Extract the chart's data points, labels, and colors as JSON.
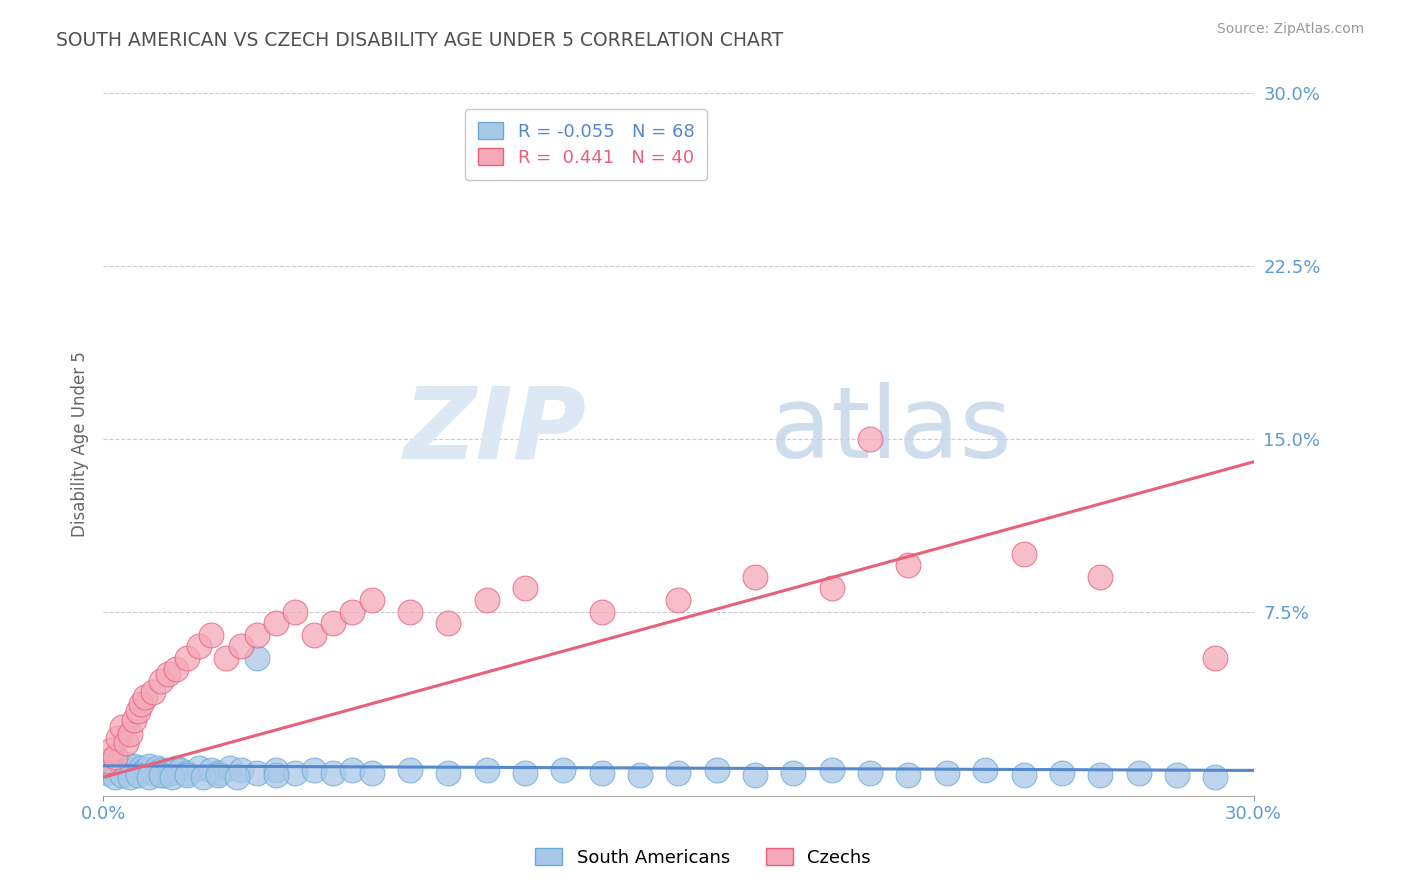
{
  "title": "SOUTH AMERICAN VS CZECH DISABILITY AGE UNDER 5 CORRELATION CHART",
  "source": "Source: ZipAtlas.com",
  "legend_sa": "South Americans",
  "legend_cz": "Czechs",
  "r_sa": -0.055,
  "n_sa": 68,
  "r_cz": 0.441,
  "n_cz": 40,
  "xlim": [
    0.0,
    0.3
  ],
  "ylim": [
    -0.005,
    0.3
  ],
  "ytick_vals": [
    0.0,
    0.075,
    0.15,
    0.225,
    0.3
  ],
  "ytick_labels": [
    "",
    "7.5%",
    "15.0%",
    "22.5%",
    "30.0%"
  ],
  "color_sa": "#a8c8e8",
  "color_cz": "#f4a8b8",
  "edge_color_sa": "#6aaad4",
  "edge_color_cz": "#e8607a",
  "line_color_sa": "#5588cc",
  "line_color_cz": "#e8607a",
  "background_color": "#ffffff",
  "grid_color": "#cccccc",
  "title_color": "#505050",
  "axis_label_color": "#5b9bd5",
  "ylabel": "Disability Age Under 5",
  "sa_line_y0": 0.008,
  "sa_line_y1": 0.006,
  "cz_line_y0": 0.003,
  "cz_line_y1": 0.14,
  "sa_x": [
    0.001,
    0.002,
    0.003,
    0.004,
    0.005,
    0.006,
    0.007,
    0.008,
    0.009,
    0.01,
    0.011,
    0.012,
    0.013,
    0.014,
    0.015,
    0.016,
    0.017,
    0.018,
    0.019,
    0.02,
    0.022,
    0.025,
    0.028,
    0.03,
    0.033,
    0.036,
    0.04,
    0.045,
    0.05,
    0.055,
    0.06,
    0.065,
    0.07,
    0.08,
    0.09,
    0.1,
    0.11,
    0.12,
    0.13,
    0.14,
    0.15,
    0.16,
    0.17,
    0.18,
    0.19,
    0.2,
    0.21,
    0.22,
    0.23,
    0.24,
    0.25,
    0.26,
    0.27,
    0.28,
    0.29,
    0.003,
    0.005,
    0.007,
    0.009,
    0.012,
    0.015,
    0.018,
    0.022,
    0.026,
    0.03,
    0.035,
    0.04,
    0.045
  ],
  "sa_y": [
    0.005,
    0.008,
    0.006,
    0.01,
    0.007,
    0.009,
    0.006,
    0.008,
    0.005,
    0.007,
    0.006,
    0.008,
    0.005,
    0.007,
    0.006,
    0.004,
    0.006,
    0.005,
    0.007,
    0.006,
    0.005,
    0.007,
    0.006,
    0.005,
    0.007,
    0.006,
    0.005,
    0.006,
    0.005,
    0.006,
    0.005,
    0.006,
    0.005,
    0.006,
    0.005,
    0.006,
    0.005,
    0.006,
    0.005,
    0.004,
    0.005,
    0.006,
    0.004,
    0.005,
    0.006,
    0.005,
    0.004,
    0.005,
    0.006,
    0.004,
    0.005,
    0.004,
    0.005,
    0.004,
    0.003,
    0.003,
    0.004,
    0.003,
    0.004,
    0.003,
    0.004,
    0.003,
    0.004,
    0.003,
    0.004,
    0.003,
    0.055,
    0.004
  ],
  "cz_x": [
    0.001,
    0.002,
    0.003,
    0.004,
    0.005,
    0.006,
    0.007,
    0.008,
    0.009,
    0.01,
    0.011,
    0.013,
    0.015,
    0.017,
    0.019,
    0.022,
    0.025,
    0.028,
    0.032,
    0.036,
    0.04,
    0.045,
    0.05,
    0.055,
    0.06,
    0.065,
    0.07,
    0.08,
    0.09,
    0.1,
    0.11,
    0.13,
    0.15,
    0.17,
    0.19,
    0.21,
    0.24,
    0.26,
    0.29,
    0.2
  ],
  "cz_y": [
    0.01,
    0.015,
    0.012,
    0.02,
    0.025,
    0.018,
    0.022,
    0.028,
    0.032,
    0.035,
    0.038,
    0.04,
    0.045,
    0.048,
    0.05,
    0.055,
    0.06,
    0.065,
    0.055,
    0.06,
    0.065,
    0.07,
    0.075,
    0.065,
    0.07,
    0.075,
    0.08,
    0.075,
    0.07,
    0.08,
    0.085,
    0.075,
    0.08,
    0.09,
    0.085,
    0.095,
    0.1,
    0.09,
    0.055,
    0.15
  ]
}
